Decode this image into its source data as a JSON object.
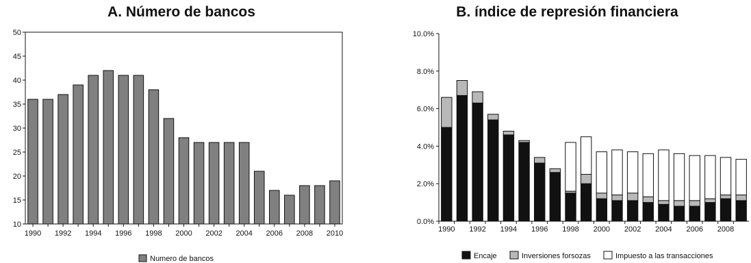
{
  "chart_data": [
    {
      "type": "bar",
      "title": "A. Número de bancos",
      "categories": [
        "1990",
        "1991",
        "1992",
        "1993",
        "1994",
        "1995",
        "1996",
        "1997",
        "1998",
        "1999",
        "2000",
        "2001",
        "2002",
        "2003",
        "2004",
        "2005",
        "2006",
        "2007",
        "2008",
        "2009",
        "2010"
      ],
      "x_tick_labels": [
        "1990",
        "1992",
        "1994",
        "1996",
        "1998",
        "2000",
        "2002",
        "2004",
        "2006",
        "2008",
        "2010"
      ],
      "series": [
        {
          "name": "Numero de bancos",
          "values": [
            36,
            36,
            37,
            39,
            41,
            42,
            41,
            41,
            38,
            32,
            28,
            27,
            27,
            27,
            27,
            21,
            17,
            16,
            18,
            18,
            19
          ],
          "color": "#808080"
        }
      ],
      "y_tick_labels": [
        "10",
        "15",
        "20",
        "25",
        "30",
        "35",
        "40",
        "45",
        "50"
      ],
      "ylim": [
        10,
        50
      ],
      "grid": false,
      "legend_position": "bottom-center"
    },
    {
      "type": "bar",
      "stacked": true,
      "title": "B. índice de represión financiera",
      "categories": [
        "1990",
        "1991",
        "1992",
        "1993",
        "1994",
        "1995",
        "1996",
        "1997",
        "1998",
        "1999",
        "2000",
        "2001",
        "2002",
        "2003",
        "2004",
        "2005",
        "2006",
        "2007",
        "2008",
        "2009"
      ],
      "x_tick_labels": [
        "1990",
        "1992",
        "1994",
        "1996",
        "1998",
        "2000",
        "2002",
        "2004",
        "2006",
        "2008"
      ],
      "series": [
        {
          "name": "Encaje",
          "values": [
            5.0,
            6.7,
            6.3,
            5.4,
            4.6,
            4.2,
            3.1,
            2.6,
            1.5,
            2.0,
            1.2,
            1.1,
            1.1,
            1.0,
            0.9,
            0.8,
            0.8,
            1.0,
            1.2,
            1.1
          ],
          "color": "#111111"
        },
        {
          "name": "Inversiones forsozas",
          "values": [
            1.6,
            0.8,
            0.6,
            0.3,
            0.2,
            0.1,
            0.3,
            0.2,
            0.1,
            0.5,
            0.3,
            0.3,
            0.4,
            0.3,
            0.2,
            0.3,
            0.3,
            0.2,
            0.2,
            0.3
          ],
          "color": "#b8b8b8"
        },
        {
          "name": "Impuesto a las transacciones",
          "values": [
            0,
            0,
            0,
            0,
            0,
            0,
            0,
            0,
            2.6,
            2.0,
            2.2,
            2.4,
            2.2,
            2.3,
            2.7,
            2.5,
            2.4,
            2.3,
            2.0,
            1.9
          ],
          "color": "#ffffff"
        }
      ],
      "y_tick_labels": [
        "0.0%",
        "2.0%",
        "4.0%",
        "6.0%",
        "8.0%",
        "10.0%"
      ],
      "ylim": [
        0,
        10
      ],
      "y_unit": "%",
      "grid": false,
      "legend_position": "bottom-center"
    }
  ]
}
